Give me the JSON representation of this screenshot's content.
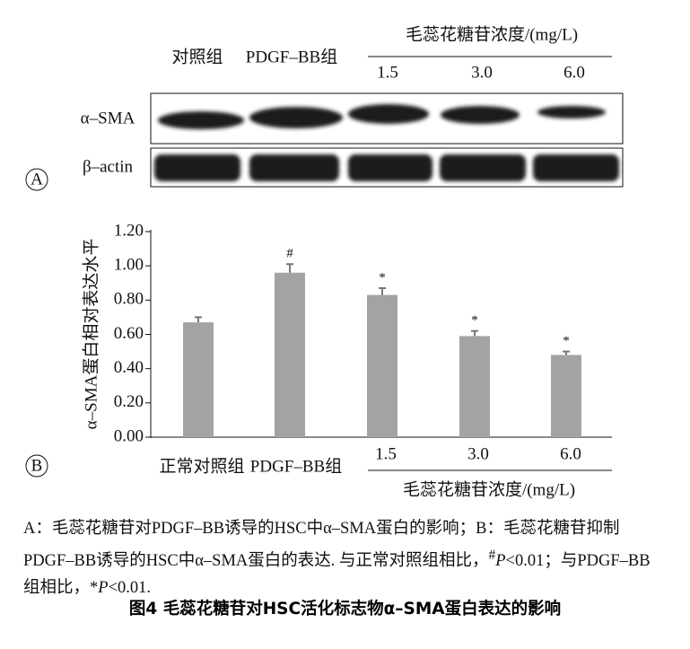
{
  "panel_labels": [
    "A",
    "B"
  ],
  "blot": {
    "columns": [
      "对照组",
      "PDGF–BB组"
    ],
    "group_label": "毛蕊花糖苷浓度/(mg/L)",
    "concentrations": [
      "1.5",
      "3.0",
      "6.0"
    ],
    "rows": [
      "α–SMA",
      "β–actin"
    ]
  },
  "chart_data": {
    "type": "bar",
    "y_label": "α–SMA蛋白相对表达水平",
    "categories": [
      "正常对照组",
      "PDGF–BB组",
      "1.5",
      "3.0",
      "6.0"
    ],
    "group_label": "毛蕊花糖苷浓度/(mg/L)",
    "values": [
      0.67,
      0.96,
      0.83,
      0.59,
      0.48
    ],
    "errors": [
      0.03,
      0.05,
      0.04,
      0.03,
      0.02
    ],
    "annotations": [
      null,
      "#",
      "*",
      "*",
      "*"
    ],
    "color": "#a3a3a3",
    "ylim": [
      0,
      1.2
    ],
    "yticks": [
      {
        "value": 0,
        "label": "0.00"
      },
      {
        "value": 0.2,
        "label": "0.20"
      },
      {
        "value": 0.4,
        "label": "0.40"
      },
      {
        "value": 0.6,
        "label": "0.60"
      },
      {
        "value": 0.8,
        "label": "0.80"
      },
      {
        "value": 1,
        "label": "1.00"
      },
      {
        "value": 1.2,
        "label": "1.20"
      }
    ]
  },
  "caption": {
    "parts": [
      "A：毛蕊花糖苷对PDGF–BB诱导的HSC中α–SMA蛋白的影响；B：毛蕊花糖苷抑制PDGF–BB诱导的HSC中α–SMA蛋白的表达. 与正常对照组相比，",
      "#",
      "P",
      "<0.01；与PDGF–BB组相比，*",
      "P",
      "<0.01."
    ],
    "title": "图4 毛蕊花糖苷对HSC活化标志物α–SMA蛋白表达的影响"
  }
}
